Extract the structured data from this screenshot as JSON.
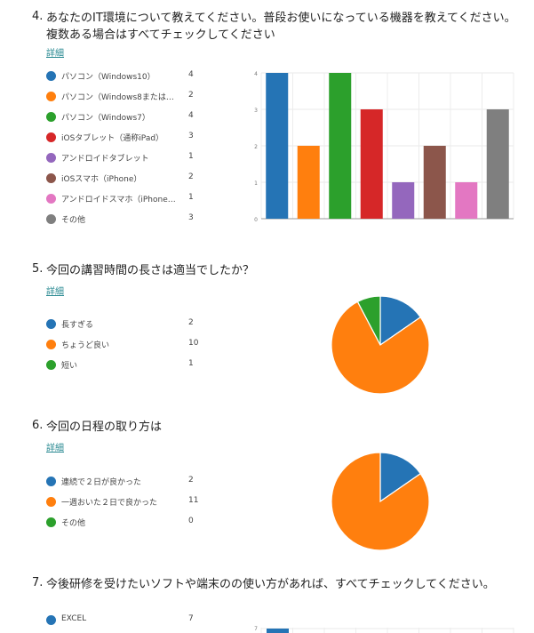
{
  "colors": {
    "blue": "#2574b5",
    "orange": "#ff7f0e",
    "green": "#2ca02c",
    "red": "#d62728",
    "purple": "#9467bd",
    "brown": "#8c564b",
    "pink": "#e377c2",
    "gray": "#7f7f7f"
  },
  "q4": {
    "number": "4.",
    "title": "あなたのIT環境について教えてください。普段お使いになっている機器を教えてください。複数ある場合はすべてチェックしてください",
    "detail": "詳細",
    "legend": [
      {
        "label": "パソコン（Windows10）",
        "count": "4",
        "color": "#2574b5"
      },
      {
        "label": "パソコン（Windows8または8....",
        "count": "2",
        "color": "#ff7f0e"
      },
      {
        "label": "パソコン（Windows7）",
        "count": "4",
        "color": "#2ca02c"
      },
      {
        "label": "iOSタブレット（通称iPad）",
        "count": "3",
        "color": "#d62728"
      },
      {
        "label": "アンドロイドタブレット",
        "count": "1",
        "color": "#9467bd"
      },
      {
        "label": "iOSスマホ（iPhone）",
        "count": "2",
        "color": "#8c564b"
      },
      {
        "label": "アンドロイドスマホ（iPhoneで...",
        "count": "1",
        "color": "#e377c2"
      },
      {
        "label": "その他",
        "count": "3",
        "color": "#7f7f7f"
      }
    ]
  },
  "q5": {
    "number": "5.",
    "title": "今回の講習時間の長さは適当でしたか？",
    "detail": "詳細",
    "legend": [
      {
        "label": "長すぎる",
        "count": "2",
        "color": "#2574b5"
      },
      {
        "label": "ちょうど良い",
        "count": "10",
        "color": "#ff7f0e"
      },
      {
        "label": "短い",
        "count": "1",
        "color": "#2ca02c"
      }
    ]
  },
  "q6": {
    "number": "6.",
    "title": "今回の日程の取り方は",
    "detail": "詳細",
    "legend": [
      {
        "label": "連続で２日が良かった",
        "count": "2",
        "color": "#2574b5"
      },
      {
        "label": "一週おいた２日で良かった",
        "count": "11",
        "color": "#ff7f0e"
      },
      {
        "label": "その他",
        "count": "0",
        "color": "#2ca02c"
      }
    ]
  },
  "q7": {
    "number": "7.",
    "title": "今後研修を受けたいソフトや端末のの使い方があれば、すべてチェックしてください。",
    "legend": [
      {
        "label": "EXCEL",
        "count": "7",
        "color": "#2574b5"
      }
    ]
  },
  "chart_data": [
    {
      "type": "bar",
      "categories": [
        "パソコン（Windows10）",
        "パソコン（Windows8または8....",
        "パソコン（Windows7）",
        "iOSタブレット（通称iPad）",
        "アンドロイドタブレット",
        "iOSスマホ（iPhone）",
        "アンドロイドスマホ（iPhoneで...",
        "その他"
      ],
      "values": [
        4,
        2,
        4,
        3,
        1,
        2,
        1,
        3
      ],
      "colors": [
        "#2574b5",
        "#ff7f0e",
        "#2ca02c",
        "#d62728",
        "#9467bd",
        "#8c564b",
        "#e377c2",
        "#7f7f7f"
      ],
      "yticks": [
        "0",
        "1",
        "2",
        "3",
        "4"
      ],
      "ylim": [
        0,
        4
      ],
      "grid": true
    },
    {
      "type": "pie",
      "categories": [
        "長すぎる",
        "ちょうど良い",
        "短い"
      ],
      "values": [
        2,
        10,
        1
      ],
      "colors": [
        "#2574b5",
        "#ff7f0e",
        "#2ca02c"
      ]
    },
    {
      "type": "pie",
      "categories": [
        "連続で２日が良かった",
        "一週おいた２日で良かった",
        "その他"
      ],
      "values": [
        2,
        11,
        0
      ],
      "colors": [
        "#2574b5",
        "#ff7f0e",
        "#2ca02c"
      ]
    },
    {
      "type": "bar",
      "categories": [
        "EXCEL"
      ],
      "values": [
        7
      ],
      "colors": [
        "#2574b5"
      ],
      "yticks": [
        "7"
      ],
      "partial": true
    }
  ]
}
